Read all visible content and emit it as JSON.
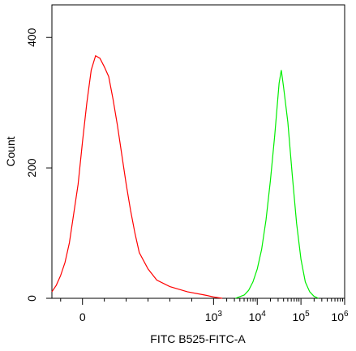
{
  "chart_data": {
    "type": "line",
    "xlabel": "FITC B525-FITC-A",
    "ylabel": "Count",
    "xscale": "biexponential",
    "xlim_decades": [
      -0.7,
      6
    ],
    "ylim": [
      0,
      450
    ],
    "y_ticks": [
      {
        "value": 0,
        "label": "0"
      },
      {
        "value": 200,
        "label": "200"
      },
      {
        "value": 400,
        "label": "400"
      }
    ],
    "x_ticks": [
      {
        "value_decade": 0,
        "label": "0",
        "base": "",
        "exp": ""
      },
      {
        "value_decade": 3,
        "label": "",
        "base": "10",
        "exp": "3"
      },
      {
        "value_decade": 4,
        "label": "",
        "base": "10",
        "exp": "4"
      },
      {
        "value_decade": 5,
        "label": "",
        "base": "10",
        "exp": "5"
      },
      {
        "value_decade": 6,
        "label": "",
        "base": "10",
        "exp": "6"
      }
    ],
    "grid": false,
    "legend": "none",
    "series": [
      {
        "color": "#ff0000",
        "points": [
          [
            -0.7,
            10
          ],
          [
            -0.6,
            20
          ],
          [
            -0.5,
            35
          ],
          [
            -0.4,
            55
          ],
          [
            -0.3,
            85
          ],
          [
            -0.2,
            130
          ],
          [
            -0.1,
            175
          ],
          [
            0,
            240
          ],
          [
            0.1,
            300
          ],
          [
            0.2,
            350
          ],
          [
            0.3,
            372
          ],
          [
            0.4,
            368
          ],
          [
            0.5,
            355
          ],
          [
            0.6,
            340
          ],
          [
            0.7,
            305
          ],
          [
            0.8,
            265
          ],
          [
            0.9,
            220
          ],
          [
            1.0,
            175
          ],
          [
            1.1,
            135
          ],
          [
            1.2,
            100
          ],
          [
            1.3,
            70
          ],
          [
            1.5,
            45
          ],
          [
            1.7,
            28
          ],
          [
            2.0,
            18
          ],
          [
            2.4,
            10
          ],
          [
            2.8,
            5
          ],
          [
            3.0,
            2
          ],
          [
            3.2,
            0
          ]
        ]
      },
      {
        "color": "#00ee00",
        "points": [
          [
            3.5,
            0
          ],
          [
            3.7,
            5
          ],
          [
            3.8,
            12
          ],
          [
            3.9,
            25
          ],
          [
            4.0,
            45
          ],
          [
            4.1,
            75
          ],
          [
            4.2,
            120
          ],
          [
            4.3,
            180
          ],
          [
            4.4,
            250
          ],
          [
            4.5,
            330
          ],
          [
            4.55,
            350
          ],
          [
            4.6,
            325
          ],
          [
            4.7,
            270
          ],
          [
            4.8,
            190
          ],
          [
            4.9,
            115
          ],
          [
            5.0,
            60
          ],
          [
            5.1,
            25
          ],
          [
            5.2,
            10
          ],
          [
            5.3,
            3
          ],
          [
            5.4,
            0
          ]
        ]
      }
    ]
  }
}
